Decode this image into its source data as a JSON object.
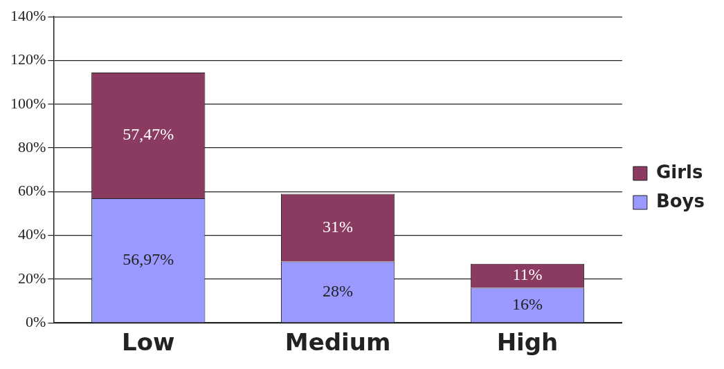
{
  "chart_data": {
    "type": "bar",
    "stacked": true,
    "categories": [
      "Low",
      "Medium",
      "High"
    ],
    "series": [
      {
        "name": "Boys",
        "color": "#9999ff",
        "values": [
          56.97,
          28,
          16
        ],
        "value_labels": [
          "56,97%",
          "28%",
          "16%"
        ]
      },
      {
        "name": "Girls",
        "color": "#8b3a62",
        "values": [
          57.47,
          31,
          11
        ],
        "value_labels": [
          "57,47%",
          "31%",
          "11%"
        ]
      }
    ],
    "ylim": [
      0,
      140
    ],
    "yticks": [
      {
        "value": 0,
        "label": "0%"
      },
      {
        "value": 20,
        "label": "20%"
      },
      {
        "value": 40,
        "label": "40%"
      },
      {
        "value": 60,
        "label": "60%"
      },
      {
        "value": 80,
        "label": "80%"
      },
      {
        "value": 100,
        "label": "100%"
      },
      {
        "value": 120,
        "label": "120%"
      },
      {
        "value": 140,
        "label": "140%"
      }
    ],
    "grid": "y",
    "legend": "right"
  }
}
